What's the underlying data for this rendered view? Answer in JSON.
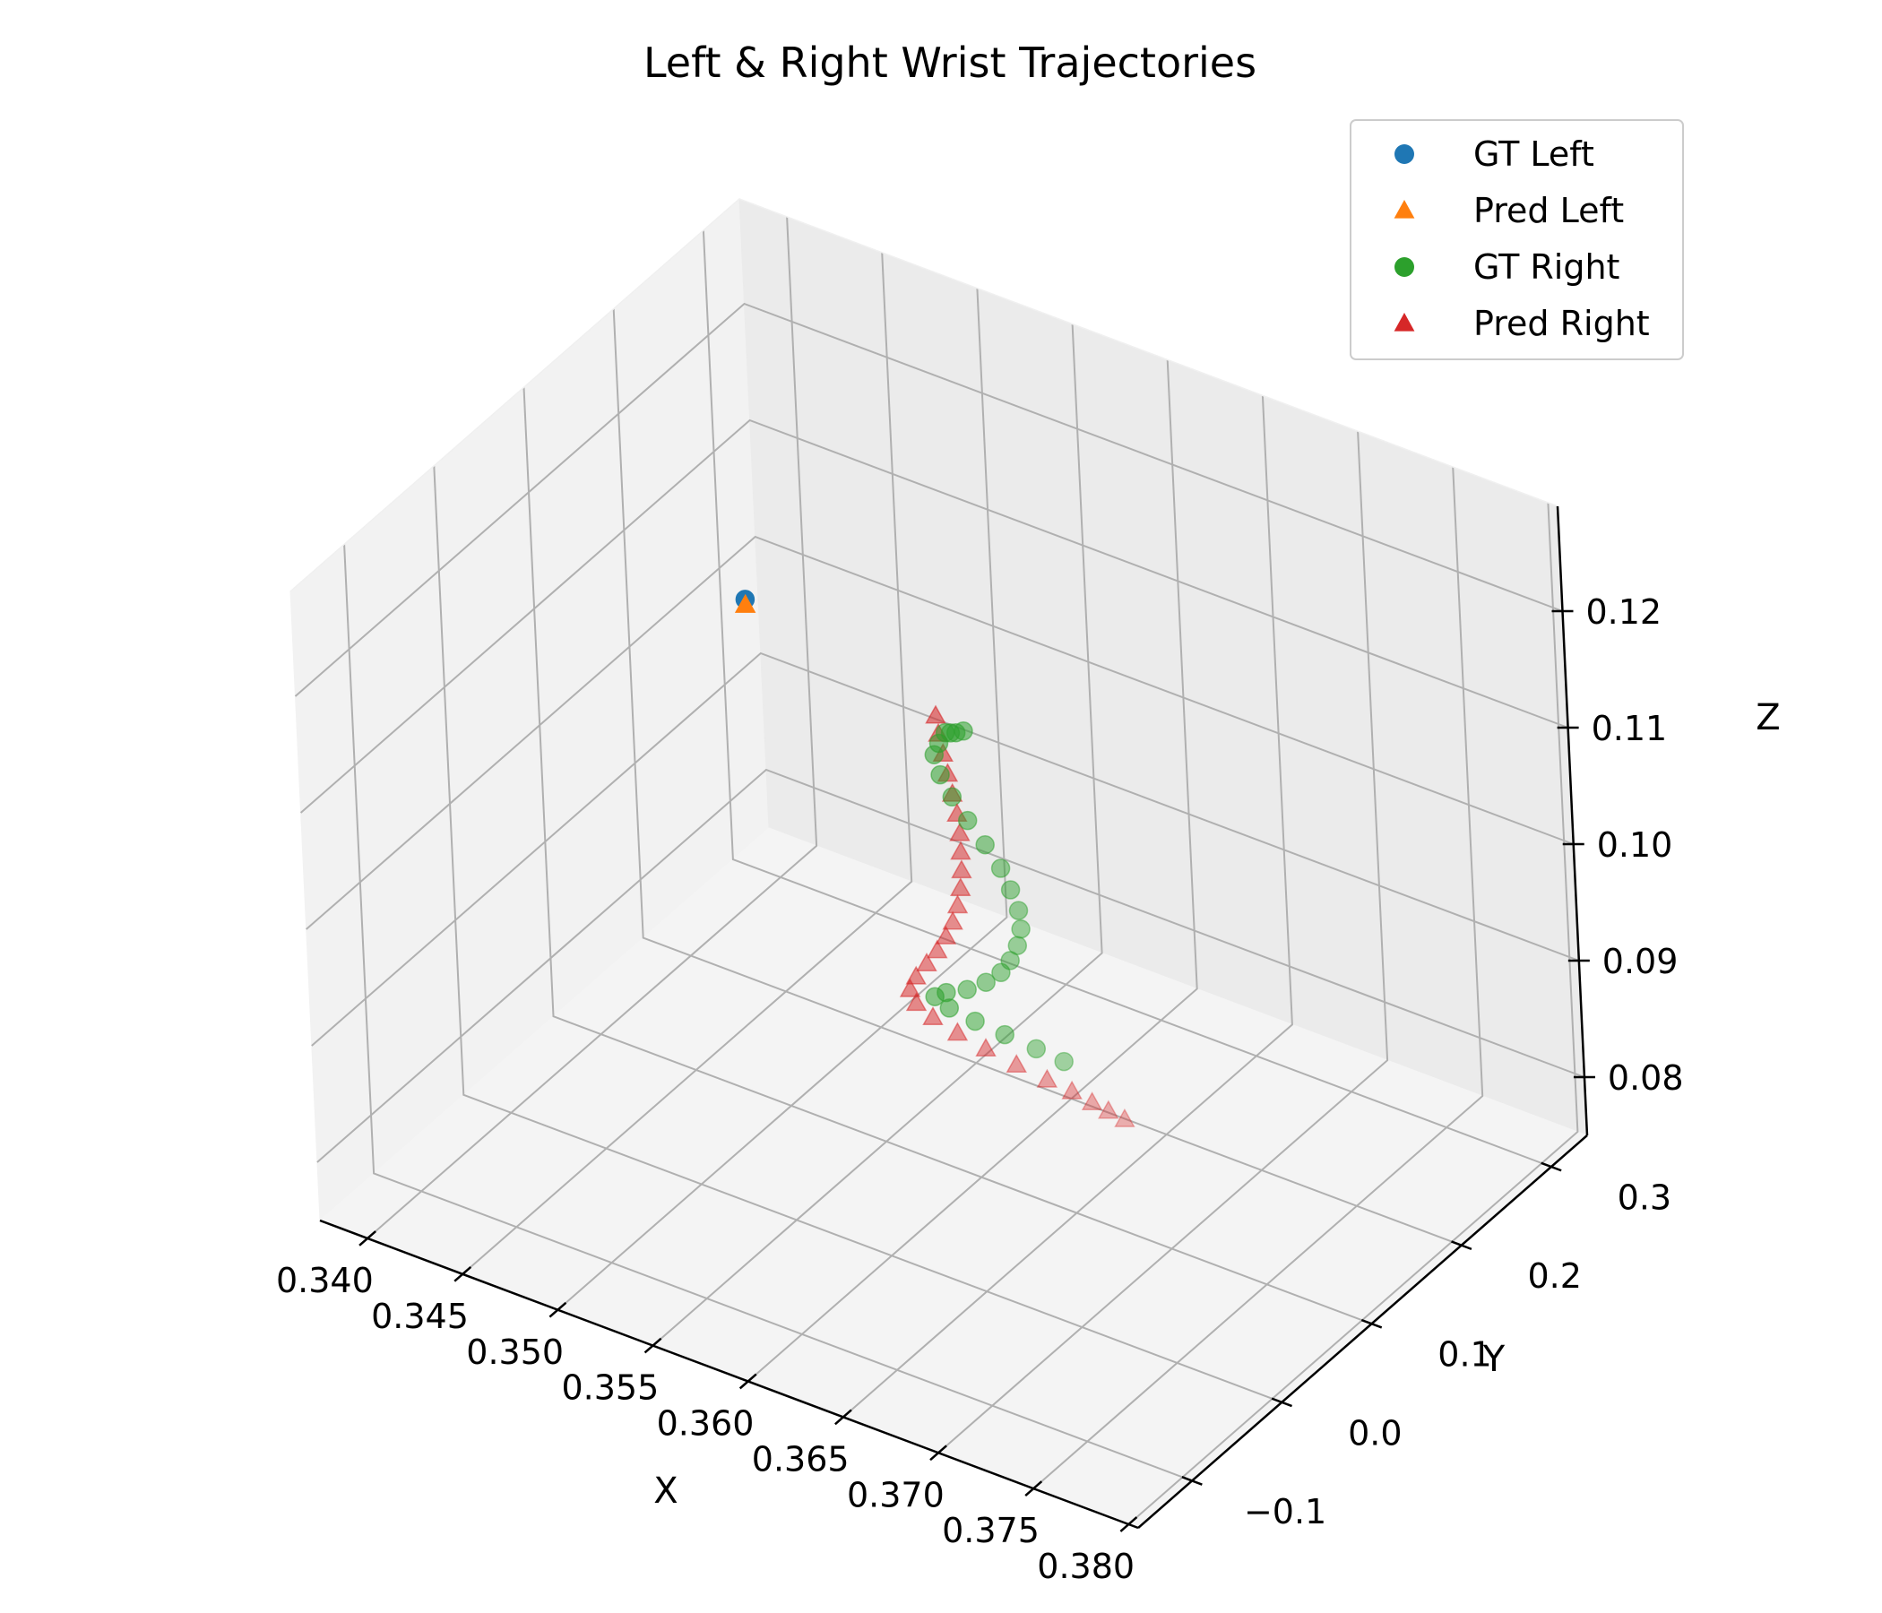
{
  "chart_data": {
    "type": "scatter3d",
    "title": "Left & Right Wrist Trajectories",
    "xlabel": "X",
    "ylabel": "Y",
    "zlabel": "Z",
    "xlim": [
      0.3375,
      0.3805
    ],
    "ylim": [
      -0.16,
      0.34
    ],
    "zlim": [
      0.075,
      0.129
    ],
    "x_ticks": [
      0.34,
      0.345,
      0.35,
      0.355,
      0.36,
      0.365,
      0.37,
      0.375,
      0.38
    ],
    "x_tick_labels": [
      "0.340",
      "0.345",
      "0.350",
      "0.355",
      "0.360",
      "0.365",
      "0.370",
      "0.375",
      "0.380"
    ],
    "y_ticks": [
      -0.1,
      0.0,
      0.1,
      0.2,
      0.3
    ],
    "y_tick_labels": [
      "−0.1",
      "0.0",
      "0.1",
      "0.2",
      "0.3"
    ],
    "z_ticks": [
      0.08,
      0.09,
      0.1,
      0.11,
      0.12
    ],
    "z_tick_labels": [
      "0.08",
      "0.09",
      "0.10",
      "0.11",
      "0.12"
    ],
    "grid": true,
    "legend_position": "top-right",
    "series": [
      {
        "name": "GT Left",
        "marker": "circle",
        "color": "#1f77b4",
        "points": [
          [
            0.3418,
            0.24,
            0.104
          ]
        ]
      },
      {
        "name": "Pred Left",
        "marker": "triangle",
        "color": "#ff7f0e",
        "points": [
          [
            0.3418,
            0.24,
            0.1035
          ]
        ]
      },
      {
        "name": "GT Right",
        "marker": "circle",
        "color": "#2ca02c",
        "points": [
          [
            0.357,
            0.149,
            0.108
          ],
          [
            0.3568,
            0.1475,
            0.108
          ],
          [
            0.3572,
            0.151,
            0.108
          ],
          [
            0.3574,
            0.155,
            0.108
          ],
          [
            0.3565,
            0.146,
            0.107
          ],
          [
            0.3563,
            0.1445,
            0.106
          ],
          [
            0.3566,
            0.144,
            0.1045
          ],
          [
            0.3572,
            0.1435,
            0.103
          ],
          [
            0.358,
            0.143,
            0.1015
          ],
          [
            0.3589,
            0.1425,
            0.1
          ],
          [
            0.3597,
            0.142,
            0.0985
          ],
          [
            0.3602,
            0.1415,
            0.097
          ],
          [
            0.3606,
            0.141,
            0.0955
          ],
          [
            0.3607,
            0.1405,
            0.094
          ],
          [
            0.3605,
            0.14,
            0.0925
          ],
          [
            0.3601,
            0.1395,
            0.091
          ],
          [
            0.3596,
            0.139,
            0.0897
          ],
          [
            0.3588,
            0.1385,
            0.0884
          ],
          [
            0.3578,
            0.138,
            0.0872
          ],
          [
            0.3567,
            0.1375,
            0.0863
          ],
          [
            0.3561,
            0.1372,
            0.0856
          ],
          [
            0.3568,
            0.138,
            0.085
          ],
          [
            0.3581,
            0.139,
            0.0846
          ],
          [
            0.3596,
            0.14,
            0.0843
          ],
          [
            0.3612,
            0.141,
            0.084
          ],
          [
            0.3626,
            0.142,
            0.0837
          ]
        ]
      },
      {
        "name": "Pred Right",
        "marker": "triangle",
        "color": "#d62728",
        "points": [
          [
            0.356,
            0.154,
            0.1085
          ],
          [
            0.3562,
            0.152,
            0.1072
          ],
          [
            0.3565,
            0.15,
            0.1058
          ],
          [
            0.3568,
            0.148,
            0.1044
          ],
          [
            0.3571,
            0.146,
            0.103
          ],
          [
            0.3574,
            0.144,
            0.1016
          ],
          [
            0.3576,
            0.142,
            0.1002
          ],
          [
            0.3577,
            0.14,
            0.0988
          ],
          [
            0.3578,
            0.138,
            0.0974
          ],
          [
            0.3578,
            0.136,
            0.096
          ],
          [
            0.3577,
            0.134,
            0.0946
          ],
          [
            0.3575,
            0.132,
            0.0932
          ],
          [
            0.3572,
            0.13,
            0.0919
          ],
          [
            0.3568,
            0.128,
            0.0906
          ],
          [
            0.3563,
            0.126,
            0.0893
          ],
          [
            0.3558,
            0.124,
            0.088
          ],
          [
            0.3555,
            0.123,
            0.0868
          ],
          [
            0.3558,
            0.123,
            0.0858
          ],
          [
            0.3566,
            0.124,
            0.085
          ],
          [
            0.3578,
            0.1255,
            0.0843
          ],
          [
            0.3592,
            0.127,
            0.0837
          ],
          [
            0.3607,
            0.129,
            0.0831
          ],
          [
            0.3622,
            0.131,
            0.0826
          ],
          [
            0.3634,
            0.133,
            0.0822
          ],
          [
            0.3644,
            0.134,
            0.0818
          ],
          [
            0.3652,
            0.135,
            0.0815
          ],
          [
            0.366,
            0.136,
            0.0812
          ]
        ]
      }
    ]
  }
}
